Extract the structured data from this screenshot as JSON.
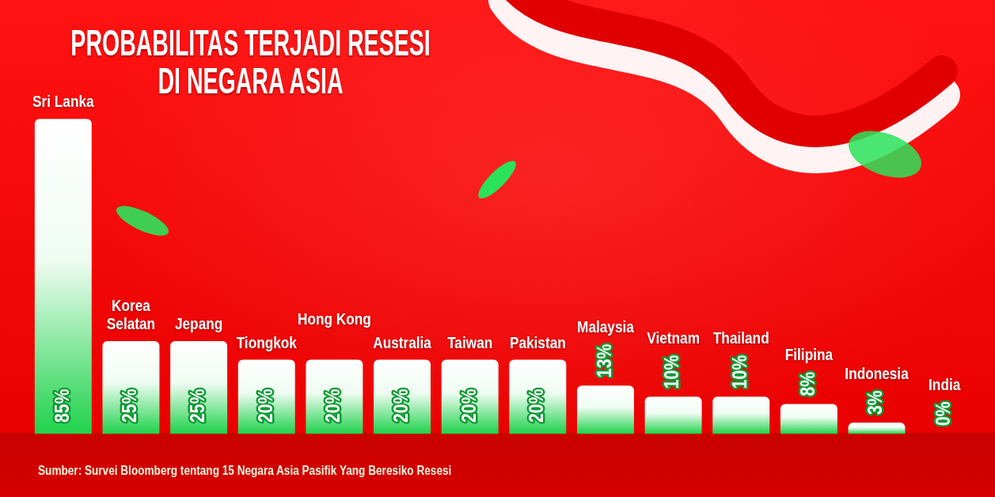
{
  "chart_data": {
    "type": "bar",
    "title": "PROBABILITAS TERJADI RESESI DI NEGARA ASIA",
    "source": "Sumber: Survei Bloomberg tentang 15 Negara Asia Pasifik Yang Beresiko Resesi",
    "categories": [
      "Sri Lanka",
      "Korea Selatan",
      "Jepang",
      "Tiongkok",
      "Hong Kong",
      "Australia",
      "Taiwan",
      "Pakistan",
      "Malaysia",
      "Vietnam",
      "Thailand",
      "Filipina",
      "Indonesia",
      "India"
    ],
    "values": [
      85,
      25,
      25,
      20,
      20,
      20,
      20,
      20,
      13,
      10,
      10,
      8,
      3,
      0
    ],
    "value_labels": [
      "85%",
      "25%",
      "25%",
      "20%",
      "20%",
      "20%",
      "20%",
      "20%",
      "13%",
      "10%",
      "10%",
      "8%",
      "3%",
      "0%"
    ],
    "color": "#1fd24b",
    "ylim": [
      0,
      100
    ],
    "data_labels": true,
    "tick_labels": false,
    "grid": false
  }
}
